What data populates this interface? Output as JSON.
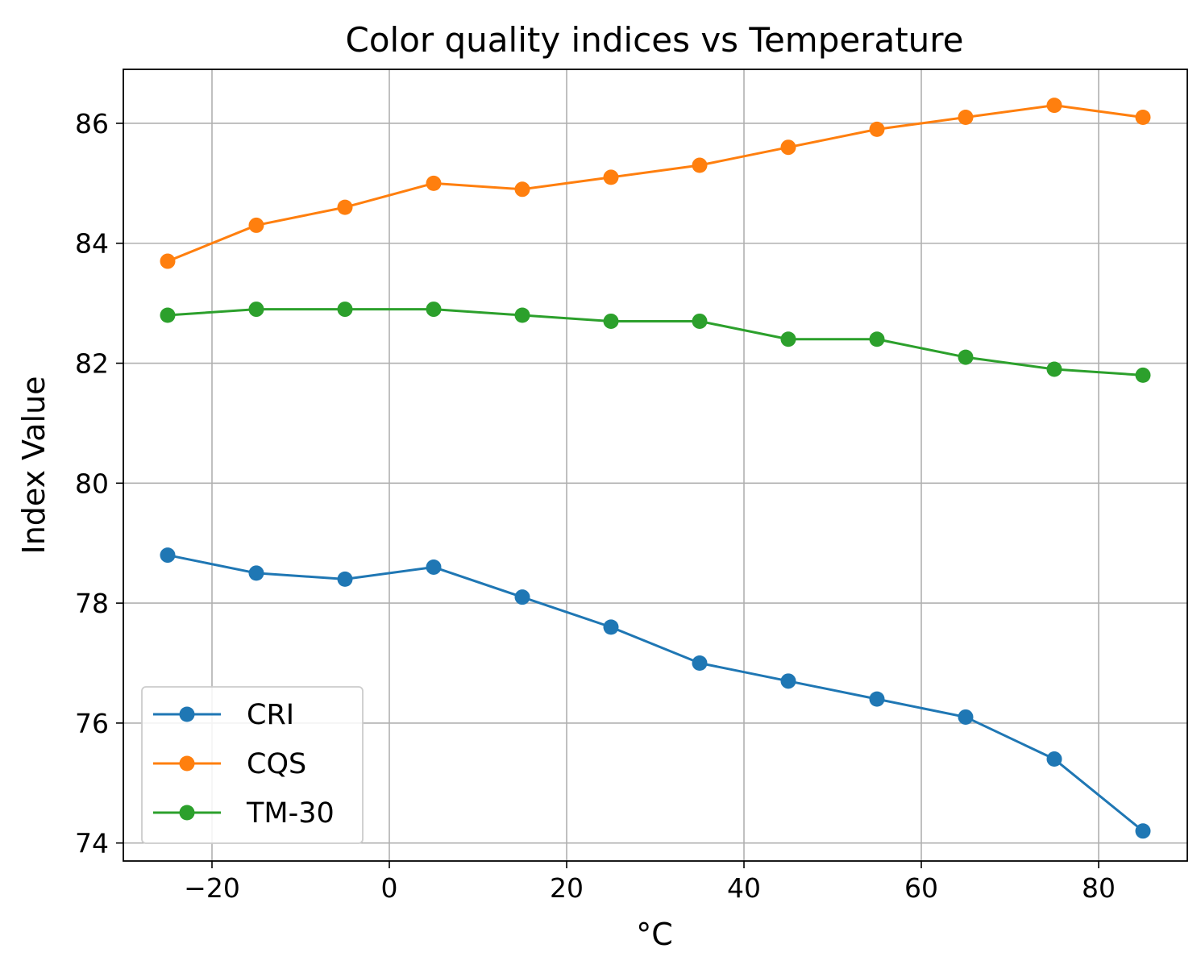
{
  "chart_data": {
    "type": "line",
    "title": "Color quality indices vs Temperature",
    "xlabel": "°C",
    "ylabel": "Index Value",
    "xlim": [
      -30,
      90
    ],
    "ylim": [
      73.7,
      86.9
    ],
    "xticks": [
      -20,
      0,
      20,
      40,
      60,
      80
    ],
    "xtick_labels": [
      "−20",
      "0",
      "20",
      "40",
      "60",
      "80"
    ],
    "yticks": [
      74,
      76,
      78,
      80,
      82,
      84,
      86
    ],
    "ytick_labels": [
      "74",
      "76",
      "78",
      "80",
      "82",
      "84",
      "86"
    ],
    "grid": true,
    "legend_position": "lower-left",
    "x": [
      -25,
      -15,
      -5,
      5,
      15,
      25,
      35,
      45,
      55,
      65,
      75,
      85
    ],
    "series": [
      {
        "name": "CRI",
        "color": "#1f77b4",
        "marker": "circle",
        "values": [
          78.8,
          78.5,
          78.4,
          78.6,
          78.1,
          77.6,
          77.0,
          76.7,
          76.4,
          76.1,
          75.4,
          74.2
        ]
      },
      {
        "name": "CQS",
        "color": "#ff7f0e",
        "marker": "circle",
        "values": [
          83.7,
          84.3,
          84.6,
          85.0,
          84.9,
          85.1,
          85.3,
          85.6,
          85.9,
          86.1,
          86.3,
          86.1
        ]
      },
      {
        "name": "TM-30",
        "color": "#2ca02c",
        "marker": "circle",
        "values": [
          82.8,
          82.9,
          82.9,
          82.9,
          82.8,
          82.7,
          82.7,
          82.4,
          82.4,
          82.1,
          81.9,
          81.8
        ]
      }
    ]
  }
}
